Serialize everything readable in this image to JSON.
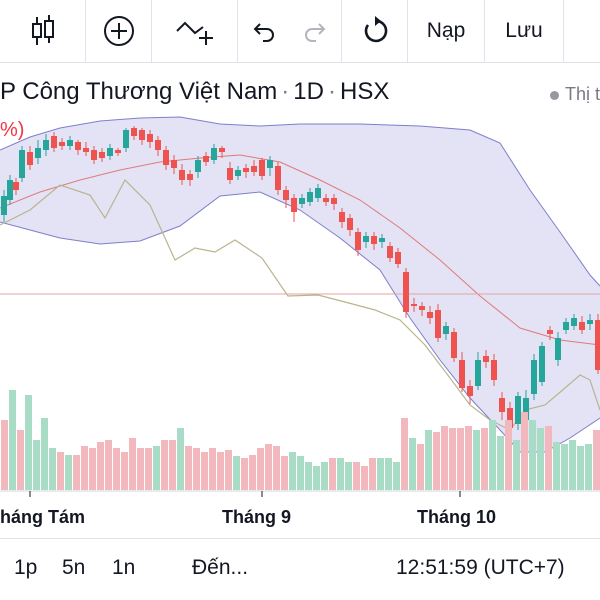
{
  "toolbar": {
    "items": [
      {
        "name": "candles-icon"
      },
      {
        "name": "add-indicator-icon"
      },
      {
        "name": "compare-icon"
      },
      {
        "name": "undo-icon"
      },
      {
        "name": "redo-icon"
      },
      {
        "name": "reset-icon"
      }
    ],
    "deposit_label": "Nạp",
    "save_label": "Lưu"
  },
  "header": {
    "symbol_name": "P Công Thương Việt Nam",
    "interval": "1D",
    "exchange": "HSX",
    "market_status": "Thị t",
    "change_fragment": "%)"
  },
  "chart_data": {
    "type": "candlestick",
    "overlays": [
      "bollinger-bands",
      "moving-average",
      "line"
    ],
    "volume": true,
    "x_tick_labels": [
      "háng Tám",
      "Tháng 9",
      "Tháng 10"
    ],
    "colors": {
      "up": "#26a69a",
      "down": "#ef5350",
      "band_fill": "#d9d9f2",
      "band_line": "#7e7ecc",
      "ma": "#e07a7a",
      "line": "#b9b48e"
    }
  },
  "bottom_bar": {
    "range_1": "1p",
    "range_2": "5n",
    "range_3": "1n",
    "goto_label": "Đến...",
    "clock": "12:51:59 (UTC+7)"
  }
}
